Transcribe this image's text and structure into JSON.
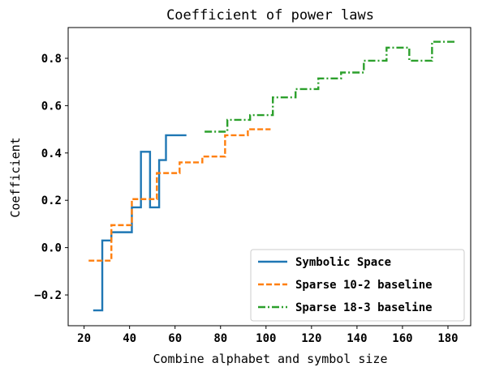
{
  "chart_data": {
    "type": "line",
    "drawstyle": "steps-post",
    "title": "Coefficient of power laws",
    "xlabel": "Combine alphabet and symbol size",
    "ylabel": "Coefficient",
    "xlim": [
      13,
      190
    ],
    "ylim": [
      -0.33,
      0.93
    ],
    "xticks": [
      20,
      40,
      60,
      80,
      100,
      120,
      140,
      160,
      180
    ],
    "yticks": [
      -0.2,
      0.0,
      0.2,
      0.4,
      0.6,
      0.8
    ],
    "xtick_labels": [
      "20",
      "40",
      "60",
      "80",
      "100",
      "120",
      "140",
      "160",
      "180"
    ],
    "ytick_labels": [
      "−0.2",
      "0.0",
      "0.2",
      "0.4",
      "0.6",
      "0.8"
    ],
    "grid": false,
    "legend_position": "bottom-right",
    "series": [
      {
        "name": "Symbolic Space",
        "color": "#1f77b4",
        "linestyle": "solid",
        "x": [
          24,
          28,
          32,
          37,
          41,
          45,
          49,
          53,
          56,
          59,
          65
        ],
        "y": [
          -0.265,
          0.03,
          0.065,
          0.065,
          0.17,
          0.405,
          0.17,
          0.37,
          0.475,
          0.475,
          0.475
        ]
      },
      {
        "name": "Sparse 10-2 baseline",
        "color": "#ff7f0e",
        "linestyle": "dashed",
        "x": [
          22,
          32,
          41,
          52,
          62,
          72,
          82,
          92,
          102
        ],
        "y": [
          -0.055,
          0.095,
          0.205,
          0.315,
          0.36,
          0.385,
          0.475,
          0.5,
          0.5
        ]
      },
      {
        "name": "Sparse 18-3 baseline",
        "color": "#2ca02c",
        "linestyle": "dashdot",
        "x": [
          73,
          83,
          93,
          103,
          113,
          123,
          133,
          143,
          153,
          163,
          173,
          183
        ],
        "y": [
          0.49,
          0.54,
          0.56,
          0.635,
          0.67,
          0.715,
          0.74,
          0.79,
          0.845,
          0.79,
          0.87,
          0.87
        ]
      }
    ]
  }
}
